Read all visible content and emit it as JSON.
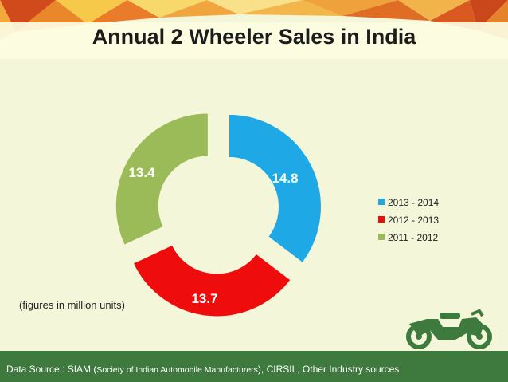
{
  "slide": {
    "title": "Annual 2 Wheeler Sales in India",
    "units_note": "(figures in million units)",
    "source": {
      "prefix": "Data Source : SIAM (",
      "org": "Society of Indian Automobile Manufacturers",
      "suffix": "), CIRSIL, Other Industry sources"
    }
  },
  "colors": {
    "background": "#f4f6d9",
    "footer": "#3e7a3d",
    "series": [
      "#1ea8e6",
      "#ee0c0c",
      "#9bbb59"
    ]
  },
  "chart_data": {
    "type": "pie",
    "variant": "exploded-doughnut",
    "title": "Annual 2 Wheeler Sales in India",
    "categories": [
      "2013 - 2014",
      "2012 - 2013",
      "2011 - 2012"
    ],
    "values": [
      14.8,
      13.7,
      13.4
    ],
    "value_labels": [
      "14.8",
      "13.7",
      "13.4"
    ],
    "units": "million units",
    "legend_position": "right"
  }
}
